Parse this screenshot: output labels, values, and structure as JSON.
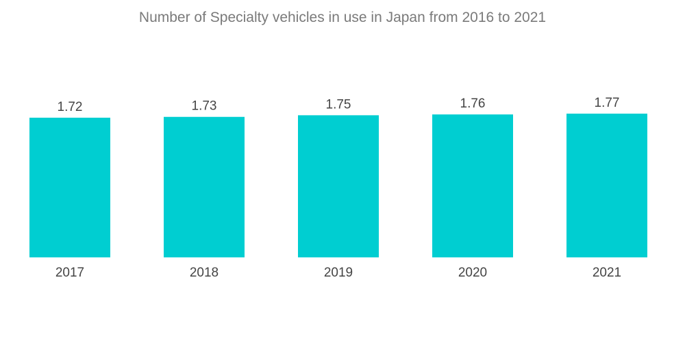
{
  "chart_data": {
    "type": "bar",
    "title": "Number of Specialty vehicles in use in Japan from 2016 to 2021",
    "categories": [
      "2017",
      "2018",
      "2019",
      "2020",
      "2021"
    ],
    "values": [
      1.72,
      1.73,
      1.75,
      1.76,
      1.77
    ],
    "value_labels": [
      "1.72",
      "1.73",
      "1.75",
      "1.76",
      "1.77"
    ],
    "xlabel": "",
    "ylabel": "",
    "ylim": [
      0,
      1.77
    ],
    "grid": false,
    "legend": "none",
    "bar_color": "#00CED1"
  }
}
